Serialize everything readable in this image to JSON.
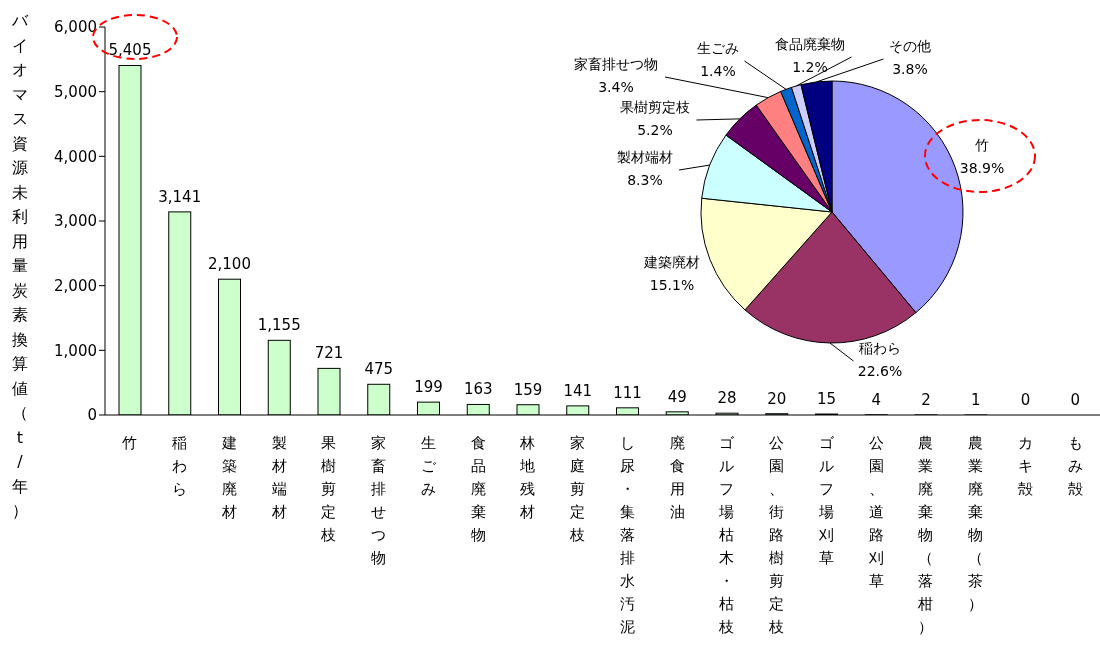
{
  "chart_data": [
    {
      "type": "bar",
      "ylabel": "バイオマス資源未利用量炭素換算値（t/年）",
      "categories": [
        "竹",
        "稲わら",
        "建築廃材",
        "製材端材",
        "果樹剪定枝",
        "家畜排せつ物",
        "生ごみ",
        "食品廃棄物",
        "林地残材",
        "家庭剪定枝",
        "し尿・集落排水汚泥",
        "廃食用油",
        "ゴルフ場枯木・枯枝",
        "公園、街路樹剪定枝",
        "ゴルフ場刈草",
        "公園、道路刈草",
        "農業廃棄物（落柑）",
        "農業廃棄物（茶）",
        "カキ殻",
        "もみ殻"
      ],
      "values": [
        5405,
        3141,
        2100,
        1155,
        721,
        475,
        199,
        163,
        159,
        141,
        111,
        49,
        28,
        20,
        15,
        4,
        2,
        1,
        0,
        0
      ],
      "value_labels": [
        "5,405",
        "3,141",
        "2,100",
        "1,155",
        "721",
        "475",
        "199",
        "163",
        "159",
        "141",
        "111",
        "49",
        "28",
        "20",
        "15",
        "4",
        "2",
        "1",
        "0",
        "0"
      ],
      "color": "#ccffcc",
      "ylim": [
        0,
        6000
      ],
      "yticks": [
        0,
        {
          "value": 1000,
          "label": "1,000"
        },
        {
          "value": 2000,
          "label": "2,000"
        },
        {
          "value": 3000,
          "label": "3,000"
        },
        {
          "value": 4000,
          "label": "4,000"
        },
        {
          "value": 5000,
          "label": "5,000"
        },
        {
          "value": 6000,
          "label": "6,000"
        }
      ]
    },
    {
      "type": "pie",
      "categories": [
        "竹",
        "稲わら",
        "建築廃材",
        "製材端材",
        "果樹剪定枝",
        "家畜排せつ物",
        "生ごみ",
        "食品廃棄物",
        "その他"
      ],
      "values": [
        38.9,
        22.6,
        15.1,
        8.3,
        5.2,
        3.4,
        1.4,
        1.2,
        3.8
      ],
      "value_labels": [
        "38.9%",
        "22.6%",
        "15.1%",
        "8.3%",
        "5.2%",
        "3.4%",
        "1.4%",
        "1.2%",
        "3.8%"
      ],
      "colors": [
        "#9999ff",
        "#993366",
        "#ffffcc",
        "#ccffff",
        "#660066",
        "#ff8080",
        "#0066cc",
        "#ccccff",
        "#000080"
      ]
    }
  ]
}
